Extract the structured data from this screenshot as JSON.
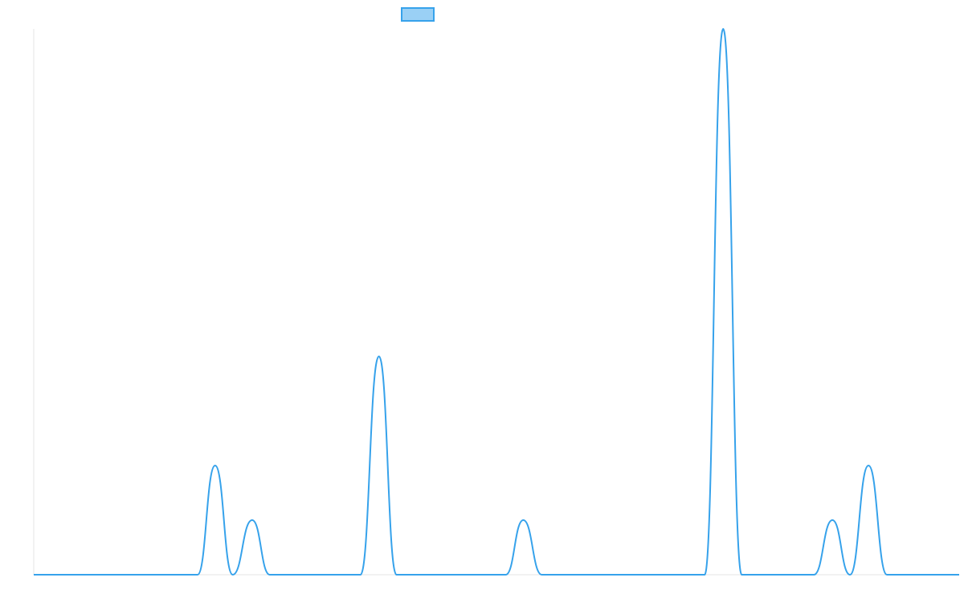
{
  "chart_data": {
    "type": "line",
    "title": "",
    "xlabel": "",
    "ylabel": "",
    "grid": false,
    "legend": {
      "placement": "top",
      "entries": [
        {
          "name": "",
          "color": "#36a2eb",
          "fill": "#9ad0f5"
        }
      ]
    },
    "xlim": [
      0,
      100
    ],
    "ylim": [
      0,
      1
    ],
    "series": [
      {
        "name": "",
        "color": "#36a2eb",
        "points": [
          {
            "x": 0,
            "y": 0
          },
          {
            "x": 17.7,
            "y": 0
          },
          {
            "x": 19.6,
            "y": 0.2
          },
          {
            "x": 21.5,
            "y": 0
          },
          {
            "x": 23.6,
            "y": 0.1
          },
          {
            "x": 25.5,
            "y": 0
          },
          {
            "x": 35.3,
            "y": 0
          },
          {
            "x": 37.3,
            "y": 0.4
          },
          {
            "x": 39.2,
            "y": 0
          },
          {
            "x": 51.0,
            "y": 0.0
          },
          {
            "x": 52.9,
            "y": 0.1
          },
          {
            "x": 54.9,
            "y": 0
          },
          {
            "x": 72.5,
            "y": 0
          },
          {
            "x": 74.5,
            "y": 1.0
          },
          {
            "x": 76.5,
            "y": 0
          },
          {
            "x": 84.3,
            "y": 0
          },
          {
            "x": 86.3,
            "y": 0.1
          },
          {
            "x": 88.2,
            "y": 0
          },
          {
            "x": 90.2,
            "y": 0.2
          },
          {
            "x": 92.2,
            "y": 0
          },
          {
            "x": 100,
            "y": 0
          }
        ]
      }
    ]
  }
}
